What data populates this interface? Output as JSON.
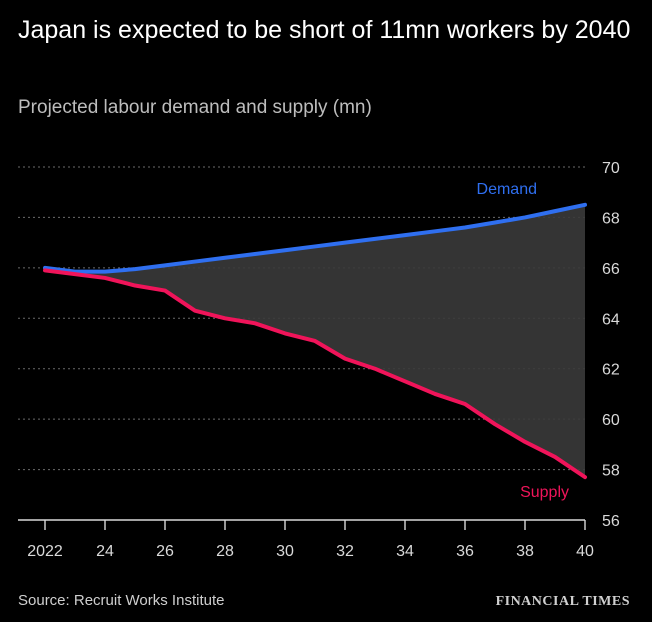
{
  "title": "Japan is expected to be short of 11mn workers by 2040",
  "subtitle": "Projected labour demand and supply (mn)",
  "source": "Source: Recruit Works Institute",
  "brand": "FINANCIAL TIMES",
  "colors": {
    "background": "#000000",
    "demand": "#2f6ff0",
    "supply": "#f0145a",
    "gap_fill": "#3a3a3a",
    "grid": "#6b6b6b",
    "text": "#ffffff",
    "subtext": "#bdbdbd"
  },
  "chart_data": {
    "type": "line",
    "title": "Japan is expected to be short of 11mn workers by 2040",
    "subtitle": "Projected labour demand and supply (mn)",
    "xlabel": "",
    "ylabel": "",
    "x": [
      2022,
      2023,
      2024,
      2025,
      2026,
      2027,
      2028,
      2029,
      2030,
      2031,
      2032,
      2033,
      2034,
      2035,
      2036,
      2037,
      2038,
      2039,
      2040
    ],
    "x_tick_values": [
      2022,
      2024,
      2026,
      2028,
      2030,
      2032,
      2034,
      2036,
      2038,
      2040
    ],
    "x_tick_labels": [
      "2022",
      "24",
      "26",
      "28",
      "30",
      "32",
      "34",
      "36",
      "38",
      "40"
    ],
    "ylim": [
      56,
      70
    ],
    "y_ticks": [
      56,
      58,
      60,
      62,
      64,
      66,
      68,
      70
    ],
    "y_axis_position": "right",
    "grid": "horizontal",
    "legend": "inline labels",
    "shaded_area": "gap between Demand and Supply",
    "series": [
      {
        "name": "Demand",
        "color": "#2f6ff0",
        "values": [
          66.0,
          65.85,
          65.85,
          65.95,
          66.1,
          66.25,
          66.4,
          66.55,
          66.7,
          66.85,
          67.0,
          67.15,
          67.3,
          67.45,
          67.6,
          67.8,
          68.0,
          68.25,
          68.5
        ]
      },
      {
        "name": "Supply",
        "color": "#f0145a",
        "values": [
          65.9,
          65.75,
          65.6,
          65.3,
          65.1,
          64.3,
          64.0,
          63.8,
          63.4,
          63.1,
          62.4,
          62.0,
          61.5,
          61.0,
          60.6,
          59.8,
          59.1,
          58.5,
          57.7
        ]
      }
    ]
  }
}
